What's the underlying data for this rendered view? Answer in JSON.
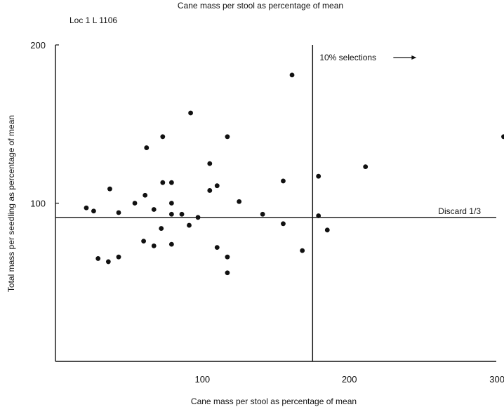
{
  "chart_data": {
    "type": "scatter",
    "title": "Cane mass per stool as percentage of mean",
    "subtitle": "Loc 1  L 1106",
    "xlabel": "Cane mass per stool as percentage of mean",
    "ylabel": "Total mass per seedling as percentage of mean",
    "xlim": [
      0,
      300
    ],
    "ylim": [
      0,
      200
    ],
    "x_ticks": [
      100,
      200,
      300
    ],
    "x_tick_labels": [
      "100",
      "200",
      "300"
    ],
    "y_ticks": [
      100,
      200
    ],
    "y_tick_labels": [
      "100",
      "200"
    ],
    "grid": false,
    "points": [
      {
        "x": 21,
        "y": 97
      },
      {
        "x": 26,
        "y": 95
      },
      {
        "x": 29,
        "y": 65
      },
      {
        "x": 36,
        "y": 63
      },
      {
        "x": 37,
        "y": 109
      },
      {
        "x": 43,
        "y": 94
      },
      {
        "x": 43,
        "y": 66
      },
      {
        "x": 54,
        "y": 100
      },
      {
        "x": 60,
        "y": 76
      },
      {
        "x": 61,
        "y": 105
      },
      {
        "x": 62,
        "y": 135
      },
      {
        "x": 67,
        "y": 96
      },
      {
        "x": 67,
        "y": 73
      },
      {
        "x": 72,
        "y": 84
      },
      {
        "x": 73,
        "y": 142
      },
      {
        "x": 73,
        "y": 113
      },
      {
        "x": 79,
        "y": 113
      },
      {
        "x": 79,
        "y": 100
      },
      {
        "x": 79,
        "y": 93
      },
      {
        "x": 79,
        "y": 74
      },
      {
        "x": 86,
        "y": 93
      },
      {
        "x": 91,
        "y": 86
      },
      {
        "x": 92,
        "y": 157
      },
      {
        "x": 97,
        "y": 91
      },
      {
        "x": 105,
        "y": 125
      },
      {
        "x": 105,
        "y": 108
      },
      {
        "x": 110,
        "y": 111
      },
      {
        "x": 110,
        "y": 72
      },
      {
        "x": 117,
        "y": 142
      },
      {
        "x": 117,
        "y": 66
      },
      {
        "x": 117,
        "y": 56
      },
      {
        "x": 125,
        "y": 101
      },
      {
        "x": 141,
        "y": 93
      },
      {
        "x": 155,
        "y": 114
      },
      {
        "x": 155,
        "y": 87
      },
      {
        "x": 161,
        "y": 181
      },
      {
        "x": 168,
        "y": 70
      },
      {
        "x": 179,
        "y": 117
      },
      {
        "x": 179,
        "y": 92
      },
      {
        "x": 185,
        "y": 83
      },
      {
        "x": 211,
        "y": 123
      },
      {
        "x": 305,
        "y": 142
      }
    ],
    "reference_lines": [
      {
        "orientation": "vertical",
        "x": 175,
        "label": "10% selections"
      },
      {
        "orientation": "horizontal",
        "y": 91,
        "label": "Discard 1/3"
      }
    ]
  }
}
